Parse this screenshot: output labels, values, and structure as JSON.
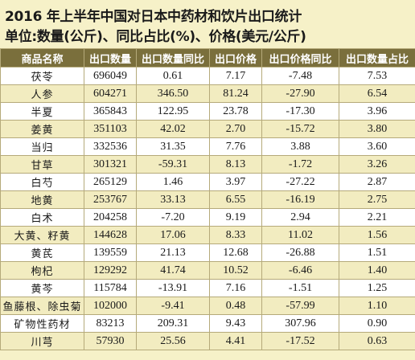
{
  "title": {
    "line1": "2016 年上半年中国对日本中药材和饮片出口统计",
    "line2": "单位:数量(公斤)、同比占比(%)、价格(美元/公斤)"
  },
  "table": {
    "headers": [
      "商品名称",
      "出口数量",
      "出口数量同比",
      "出口价格",
      "出口价格同比",
      "出口数量占比"
    ],
    "rows": [
      [
        "茯苓",
        "696049",
        "0.61",
        "7.17",
        "-7.48",
        "7.53"
      ],
      [
        "人参",
        "604271",
        "346.50",
        "81.24",
        "-27.90",
        "6.54"
      ],
      [
        "半夏",
        "365843",
        "122.95",
        "23.78",
        "-17.30",
        "3.96"
      ],
      [
        "姜黄",
        "351103",
        "42.02",
        "2.70",
        "-15.72",
        "3.80"
      ],
      [
        "当归",
        "332536",
        "31.35",
        "7.76",
        "3.88",
        "3.60"
      ],
      [
        "甘草",
        "301321",
        "-59.31",
        "8.13",
        "-1.72",
        "3.26"
      ],
      [
        "白芍",
        "265129",
        "1.46",
        "3.97",
        "-27.22",
        "2.87"
      ],
      [
        "地黄",
        "253767",
        "33.13",
        "6.55",
        "-16.19",
        "2.75"
      ],
      [
        "白术",
        "204258",
        "-7.20",
        "9.19",
        "2.94",
        "2.21"
      ],
      [
        "大黄、籽黄",
        "144628",
        "17.06",
        "8.33",
        "11.02",
        "1.56"
      ],
      [
        "黄芪",
        "139559",
        "21.13",
        "12.68",
        "-26.88",
        "1.51"
      ],
      [
        "枸杞",
        "129292",
        "41.74",
        "10.52",
        "-6.46",
        "1.40"
      ],
      [
        "黄芩",
        "115784",
        "-13.91",
        "7.16",
        "-1.51",
        "1.25"
      ],
      [
        "鱼藤根、除虫菊",
        "102000",
        "-9.41",
        "0.48",
        "-57.99",
        "1.10"
      ],
      [
        "矿物性药材",
        "83213",
        "209.31",
        "9.43",
        "307.96",
        "0.90"
      ],
      [
        "川芎",
        "57930",
        "25.56",
        "4.41",
        "-17.52",
        "0.63"
      ]
    ]
  }
}
